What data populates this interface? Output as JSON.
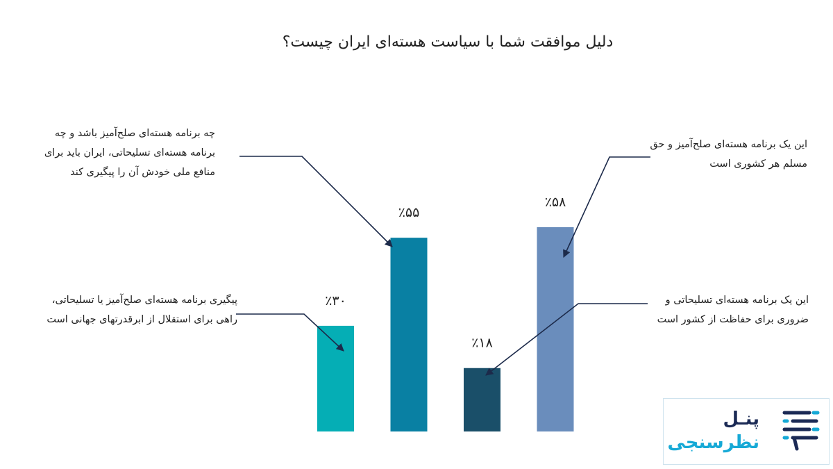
{
  "chart_data": {
    "type": "bar",
    "title": "دلیل موافقت شما با سیاست هسته‌ای ایران چیست؟",
    "categories": [
      "پیگیری برنامه هسته‌ای صلح‌آمیز یا تسلیحاتی، راهی برای استقلال از ابرقدرتهای جهانی است",
      "چه برنامه هسته‌ای صلح‌آمیز باشد و چه برنامه هسته‌ای تسلیحاتی، ایران باید برای منافع ملی خودش آن را پیگیری کند",
      "این یک برنامه هسته‌ای تسلیحاتی و ضروری برای حفاظت از کشور است",
      "این یک برنامه هسته‌ای صلح‌آمیز و حق مسلم هر کشوری است"
    ],
    "values": [
      30,
      55,
      18,
      58
    ],
    "value_labels": [
      "٪۳۰",
      "٪۵۵",
      "٪۱۸",
      "٪۵۸"
    ],
    "colors": [
      "#05aeb5",
      "#0980a3",
      "#1a4f69",
      "#6a8dbc"
    ]
  },
  "logo": {
    "line1": "پنـل",
    "line2": "نظرسنجی"
  }
}
